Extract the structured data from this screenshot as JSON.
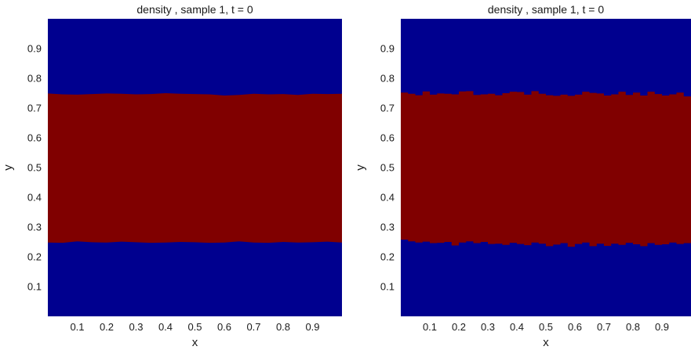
{
  "chart_data": [
    {
      "type": "heatmap",
      "title": "density , sample 1, t = 0",
      "xlabel": "x",
      "ylabel": "y",
      "xlim": [
        0,
        1
      ],
      "ylim": [
        0,
        1
      ],
      "xticks": [
        "0.1",
        "0.2",
        "0.3",
        "0.4",
        "0.5",
        "0.6",
        "0.7",
        "0.8",
        "0.9"
      ],
      "yticks": [
        "0.1",
        "0.2",
        "0.3",
        "0.4",
        "0.5",
        "0.6",
        "0.7",
        "0.8",
        "0.9"
      ],
      "grid": false,
      "colors": {
        "low": "#00008f",
        "high": "#800000"
      },
      "interface_style": "smooth",
      "x": [
        0.0,
        0.05,
        0.1,
        0.15,
        0.2,
        0.25,
        0.3,
        0.35,
        0.4,
        0.45,
        0.5,
        0.55,
        0.6,
        0.65,
        0.7,
        0.75,
        0.8,
        0.85,
        0.9,
        0.95,
        1.0
      ],
      "lower_interface": [
        0.248,
        0.247,
        0.252,
        0.249,
        0.248,
        0.251,
        0.249,
        0.247,
        0.248,
        0.25,
        0.249,
        0.247,
        0.248,
        0.252,
        0.248,
        0.247,
        0.25,
        0.248,
        0.249,
        0.251,
        0.248
      ],
      "upper_interface": [
        0.749,
        0.746,
        0.745,
        0.747,
        0.749,
        0.748,
        0.746,
        0.747,
        0.75,
        0.748,
        0.747,
        0.746,
        0.742,
        0.744,
        0.748,
        0.746,
        0.747,
        0.744,
        0.748,
        0.747,
        0.748
      ]
    },
    {
      "type": "heatmap",
      "title": "density , sample 1, t = 0",
      "xlabel": "x",
      "ylabel": "y",
      "xlim": [
        0,
        1
      ],
      "ylim": [
        0,
        1
      ],
      "xticks": [
        "0.1",
        "0.2",
        "0.3",
        "0.4",
        "0.5",
        "0.6",
        "0.7",
        "0.8",
        "0.9"
      ],
      "yticks": [
        "0.1",
        "0.2",
        "0.3",
        "0.4",
        "0.5",
        "0.6",
        "0.7",
        "0.8",
        "0.9"
      ],
      "grid": false,
      "colors": {
        "low": "#00008f",
        "high": "#800000"
      },
      "interface_style": "blocky",
      "columns": 40,
      "lower_interface": [
        0.258,
        0.252,
        0.248,
        0.251,
        0.246,
        0.247,
        0.25,
        0.238,
        0.248,
        0.252,
        0.246,
        0.25,
        0.243,
        0.244,
        0.24,
        0.247,
        0.243,
        0.239,
        0.248,
        0.244,
        0.236,
        0.241,
        0.246,
        0.234,
        0.243,
        0.248,
        0.236,
        0.244,
        0.237,
        0.244,
        0.24,
        0.247,
        0.242,
        0.236,
        0.246,
        0.24,
        0.242,
        0.248,
        0.243,
        0.246
      ],
      "upper_interface": [
        0.752,
        0.748,
        0.743,
        0.756,
        0.745,
        0.749,
        0.748,
        0.746,
        0.756,
        0.757,
        0.744,
        0.746,
        0.748,
        0.743,
        0.75,
        0.755,
        0.754,
        0.745,
        0.757,
        0.748,
        0.743,
        0.741,
        0.745,
        0.741,
        0.745,
        0.755,
        0.751,
        0.749,
        0.742,
        0.746,
        0.755,
        0.744,
        0.752,
        0.742,
        0.755,
        0.747,
        0.742,
        0.746,
        0.752,
        0.739
      ]
    }
  ]
}
